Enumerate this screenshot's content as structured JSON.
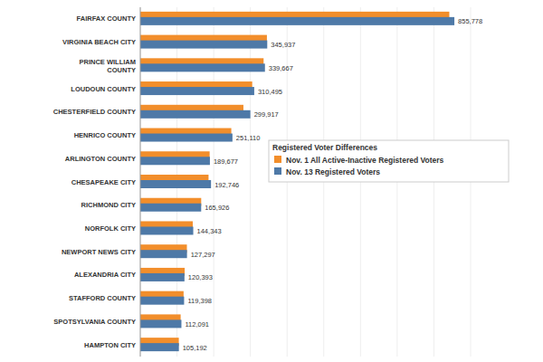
{
  "chart_data": {
    "type": "bar",
    "orientation": "horizontal",
    "legend_title": "Registered Voter Differences",
    "categories": [
      "FAIRFAX COUNTY",
      "VIRGINIA BEACH CITY",
      "PRINCE WILLIAM COUNTY",
      "LOUDOUN COUNTY",
      "CHESTERFIELD COUNTY",
      "HENRICO COUNTY",
      "ARLINGTON COUNTY",
      "CHESAPEAKE CITY",
      "RICHMOND CITY",
      "NORFOLK CITY",
      "NEWPORT NEWS CITY",
      "ALEXANDRIA CITY",
      "STAFFORD COUNTY",
      "SPOTSYLVANIA COUNTY",
      "HAMPTON CITY"
    ],
    "series": [
      {
        "name": "Nov. 1 All Active-Inactive Registered Voters",
        "color": "#f28e2b",
        "values": [
          842000,
          345000,
          336000,
          305000,
          281000,
          248000,
          189000,
          186000,
          166000,
          143000,
          127000,
          121000,
          118000,
          110000,
          105000
        ]
      },
      {
        "name": "Nov. 13 Registered Voters",
        "color": "#4e79a7",
        "data_labels": true,
        "values": [
          855778,
          345937,
          339667,
          310495,
          299917,
          251110,
          189677,
          192746,
          165926,
          144343,
          127297,
          120393,
          119398,
          112091,
          105192
        ],
        "value_labels": [
          "855,778",
          "345,937",
          "339,667",
          "310,495",
          "299,917",
          "251,110",
          "189,677",
          "192,746",
          "165,926",
          "144,343",
          "127,297",
          "120,393",
          "119,398",
          "112,091",
          "105,192"
        ]
      }
    ],
    "xlim": [
      0,
      900000
    ],
    "xticks": [
      0,
      100000,
      200000,
      300000,
      400000,
      500000,
      600000,
      700000,
      800000,
      900000
    ],
    "grid": true,
    "tick_labels": "y",
    "legend": "right"
  }
}
